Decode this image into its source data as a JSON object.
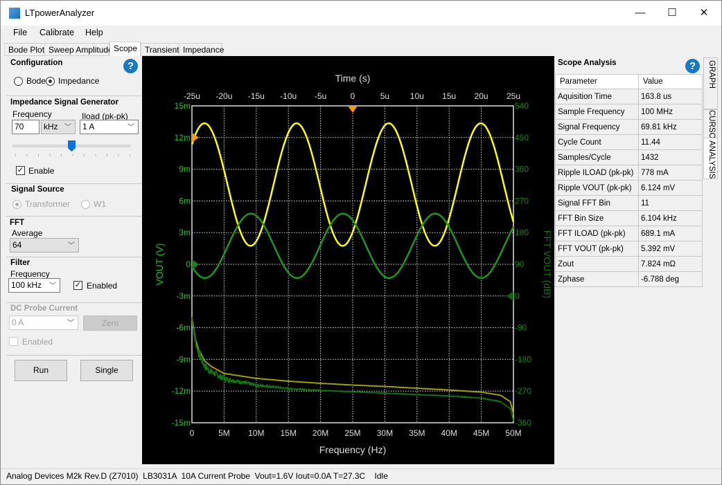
{
  "window": {
    "title": "LTpowerAnalyzer",
    "minimize": "—",
    "maximize": "☐",
    "close": "✕"
  },
  "menu": [
    "File",
    "Calibrate",
    "Help"
  ],
  "tabs": [
    "Bode Plot",
    "Sweep Amplitude",
    "Scope",
    "Transient",
    "Impedance"
  ],
  "active_tab": "Scope",
  "left": {
    "config": {
      "title": "Configuration",
      "bode": "Bode",
      "impedance": "Impedance",
      "selected": "Impedance",
      "help": "?"
    },
    "gen": {
      "title": "Impedance Signal Generator",
      "freq_label": "Frequency",
      "freq_value": "70",
      "freq_unit": "kHz",
      "iload_label": "Iload (pk-pk)",
      "iload_value": "1 A",
      "slider_fraction": 0.5,
      "enable": "Enable",
      "enable_checked": true
    },
    "source": {
      "title": "Signal Source",
      "transformer": "Transformer",
      "w1": "W1",
      "selected": "Transformer"
    },
    "fft": {
      "title": "FFT",
      "avg_label": "Average",
      "avg_value": "64"
    },
    "filter": {
      "title": "Filter",
      "freq_label": "Frequency",
      "freq_value": "100 kHz",
      "enabled": "Enabled",
      "enabled_checked": true
    },
    "dc": {
      "title": "DC Probe Current",
      "value": "0 A",
      "zero": "Zero",
      "enabled": "Enabled",
      "enabled_checked": false
    },
    "run": "Run",
    "single": "Single"
  },
  "right": {
    "title": "Scope Analysis",
    "help": "?",
    "headers": [
      "Parameter",
      "Value"
    ],
    "rows": [
      [
        "Aquisition Time",
        "163.8 us"
      ],
      [
        "Sample Frequency",
        "100 MHz"
      ],
      [
        "Signal Frequency",
        "69.81 kHz"
      ],
      [
        "Cycle Count",
        "11.44"
      ],
      [
        "Samples/Cycle",
        "1432"
      ],
      [
        "Ripple ILOAD (pk-pk)",
        "778 mA"
      ],
      [
        "Ripple VOUT (pk-pk)",
        "6.124 mV"
      ],
      [
        "Signal FFT Bin",
        "11"
      ],
      [
        "FFT Bin Size",
        "6.104 kHz"
      ],
      [
        "FFT ILOAD (pk-pk)",
        "689.1 mA"
      ],
      [
        "FFT VOUT (pk-pk)",
        "5.392 mV"
      ],
      [
        "Zout",
        "7.824 mΩ"
      ],
      [
        "Zphase",
        "-6.788 deg"
      ]
    ],
    "vtabs": [
      "GRAPH",
      "CURSORS",
      "ANALYSIS"
    ],
    "active_vtab": "ANALYSIS"
  },
  "status": "Analog Devices M2k Rev.D (Z7010)  LB3031A  10A Current Probe  Vout=1.6V Iout=0.0A T=27.3C    Idle",
  "chart_data": {
    "type": "line",
    "top_axis": {
      "label": "Time (s)",
      "ticks": [
        "-25u",
        "-20u",
        "-15u",
        "-10u",
        "-5u",
        "0",
        "5u",
        "10u",
        "15u",
        "20u",
        "25u"
      ],
      "range": [
        -2.5e-05,
        2.5e-05
      ]
    },
    "bottom_axis": {
      "label": "Frequency (Hz)",
      "ticks": [
        "0",
        "5M",
        "10M",
        "15M",
        "20M",
        "25M",
        "30M",
        "35M",
        "40M",
        "45M",
        "50M"
      ],
      "range": [
        0,
        50000000.0
      ]
    },
    "left_axis": {
      "label": "VOUT (V)",
      "ticks": [
        "15m",
        "12m",
        "9m",
        "6m",
        "3m",
        "0",
        "-3m",
        "-6m",
        "-9m",
        "-12m",
        "-15m"
      ],
      "range": [
        -0.015,
        0.015
      ]
    },
    "right_axis": {
      "label": "FFT VOUT (dB)",
      "ticks": [
        "540",
        "450",
        "360",
        "270",
        "180",
        "90",
        "0",
        "-90",
        "-180",
        "-270",
        "-360"
      ],
      "range": [
        -360,
        540
      ]
    },
    "grid": true,
    "time_series": [
      {
        "color": "#ffff00",
        "frequency_hz": 69810,
        "offset": 0.00755,
        "amplitude": 0.0058,
        "peak_time": 5.6e-06
      },
      {
        "color": "#1a9a1a",
        "frequency_hz": 69810,
        "offset": 0.00175,
        "amplitude": 0.00305,
        "peak_time": -1.5e-06
      }
    ],
    "fft_series": [
      {
        "color": "#a0a000",
        "freq_mhz": [
          0,
          0.5,
          1,
          2,
          3,
          5,
          10,
          15,
          20,
          25,
          30,
          35,
          40,
          45,
          48,
          49.5,
          50
        ],
        "db": [
          -60,
          -120,
          -150,
          -185,
          -200,
          -220,
          -234,
          -242,
          -248,
          -253,
          -257,
          -262,
          -267,
          -273,
          -282,
          -300,
          -335
        ]
      },
      {
        "color": "#117711",
        "freq_mhz": [
          0,
          0.5,
          1,
          2,
          3,
          5,
          10,
          15,
          20,
          25,
          30,
          35,
          40,
          45,
          48,
          49.5,
          50
        ],
        "db": [
          -60,
          -125,
          -160,
          -200,
          -215,
          -235,
          -253,
          -263,
          -268,
          -272,
          -276,
          -280,
          -284,
          -290,
          -300,
          -320,
          -355
        ]
      }
    ],
    "markers": {
      "trigger_time": 0,
      "trigger_level": 0.012,
      "ch2_level": 0,
      "fft_ref_db": 0,
      "marker_color": "#ff9900"
    }
  }
}
